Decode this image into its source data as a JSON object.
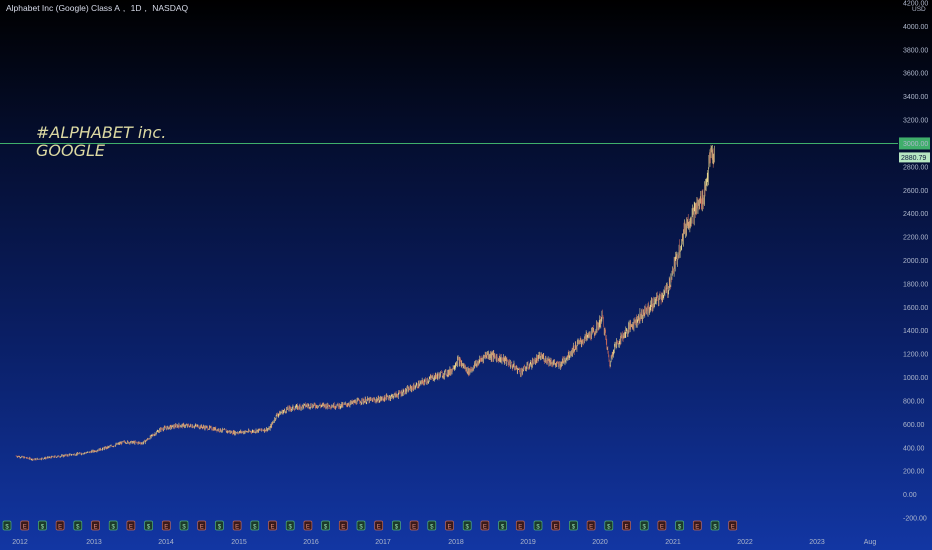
{
  "header": {
    "symbol": "Alphabet Inc (Google) Class A",
    "interval": "1D",
    "exchange": "NASDAQ"
  },
  "annotation": {
    "line1": "#ALPHABET inc.",
    "line2": "GOOGLE"
  },
  "price_axis": {
    "currency": "USD",
    "last_price_label": "2880.79",
    "last_price_color": "#b7e7c2",
    "level_line_color": "#3fae6b"
  },
  "event_icons": {
    "dividend_symbol": "$",
    "earnings_symbol": "E",
    "count": 42
  },
  "colors": {
    "up_candle": "#e6d58f",
    "down_candle": "#c0675a",
    "axis_text": "#aeb7cc"
  },
  "chart_data": {
    "type": "line",
    "title": "",
    "xlabel": "",
    "ylabel": "",
    "ylim": [
      -200,
      4200
    ],
    "y_ticks": [
      4200,
      4000,
      3800,
      3600,
      3400,
      3200,
      3000,
      2800,
      2600,
      2400,
      2200,
      2000,
      1800,
      1600,
      1400,
      1200,
      1000,
      800,
      600,
      400,
      200,
      0,
      -200
    ],
    "y_tick_labels": [
      "4200.00",
      "4000.00",
      "3800.00",
      "3600.00",
      "3400.00",
      "3200.00",
      "3000.00",
      "2800.00",
      "2600.00",
      "2400.00",
      "2200.00",
      "2000.00",
      "1800.00",
      "1600.00",
      "1400.00",
      "1200.00",
      "1000.00",
      "800.00",
      "600.00",
      "400.00",
      "200.00",
      "0.00",
      "-200.00"
    ],
    "x_tick_labels": [
      "2012",
      "2013",
      "2014",
      "2015",
      "2016",
      "2017",
      "2018",
      "2019",
      "2020",
      "2021",
      "2022",
      "2023",
      "Aug"
    ],
    "horizontal_level": 3000,
    "last_price": 2880.79,
    "series": [
      {
        "x": [
          2012.0,
          2012.25,
          2012.5,
          2012.75,
          2013.0,
          2013.25,
          2013.5,
          2013.75,
          2014.0,
          2014.25,
          2014.5,
          2014.75,
          2015.0,
          2015.25,
          2015.5,
          2015.6,
          2015.75,
          2016.0,
          2016.25,
          2016.5,
          2016.75,
          2017.0,
          2017.25,
          2017.5,
          2017.75,
          2018.0,
          2018.1,
          2018.25,
          2018.5,
          2018.75,
          2018.97,
          2019.25,
          2019.5,
          2019.75,
          2020.0,
          2020.1,
          2020.2,
          2020.25,
          2020.5,
          2020.75,
          2021.0,
          2021.25,
          2021.5,
          2021.6,
          2021.65
        ],
        "values": [
          330,
          300,
          320,
          340,
          360,
          400,
          450,
          440,
          560,
          590,
          585,
          560,
          530,
          540,
          560,
          680,
          730,
          760,
          760,
          760,
          800,
          810,
          850,
          920,
          1000,
          1050,
          1150,
          1050,
          1200,
          1150,
          1050,
          1180,
          1100,
          1280,
          1400,
          1520,
          1100,
          1250,
          1450,
          1600,
          1750,
          2300,
          2550,
          2920,
          2880
        ]
      }
    ]
  }
}
